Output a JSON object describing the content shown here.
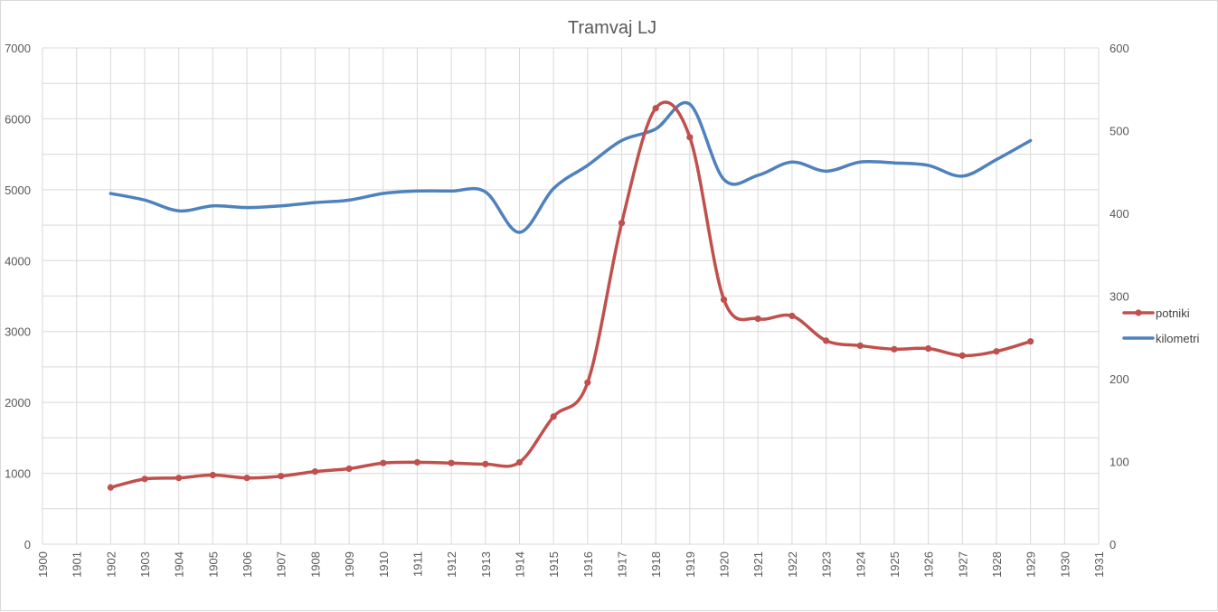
{
  "chart_data": {
    "type": "line",
    "title": "Tramvaj LJ",
    "x_ticks": [
      "1900",
      "1901",
      "1902",
      "1903",
      "1904",
      "1905",
      "1906",
      "1907",
      "1908",
      "1909",
      "1910",
      "1911",
      "1912",
      "1913",
      "1914",
      "1915",
      "1916",
      "1917",
      "1918",
      "1919",
      "1920",
      "1921",
      "1922",
      "1923",
      "1924",
      "1925",
      "1926",
      "1927",
      "1928",
      "1929",
      "1930",
      "1931"
    ],
    "xlim": [
      1900,
      1931
    ],
    "ylim_left": [
      0,
      7000
    ],
    "ylim_right": [
      0,
      600
    ],
    "y_left_ticks": [
      0,
      1000,
      2000,
      3000,
      4000,
      5000,
      6000,
      7000
    ],
    "y_right_ticks": [
      0,
      100,
      200,
      300,
      400,
      500,
      600
    ],
    "grid": true,
    "legend_position": "right",
    "colors": {
      "potniki": "#c0504d",
      "kilometri": "#4f81bd",
      "grid": "#d9d9d9"
    },
    "series": [
      {
        "name": "potniki",
        "axis": "left",
        "markers": true,
        "x": [
          1902,
          1903,
          1904,
          1905,
          1906,
          1907,
          1908,
          1909,
          1910,
          1911,
          1912,
          1913,
          1914,
          1915,
          1916,
          1917,
          1918,
          1919,
          1920,
          1921,
          1922,
          1923,
          1924,
          1925,
          1926,
          1927,
          1928,
          1929
        ],
        "values": [
          800,
          920,
          935,
          975,
          935,
          960,
          1025,
          1065,
          1145,
          1155,
          1145,
          1130,
          1155,
          1800,
          2280,
          4530,
          6150,
          5740,
          3450,
          3180,
          3220,
          2870,
          2800,
          2750,
          2760,
          2660,
          2720,
          2860
        ]
      },
      {
        "name": "kilometri",
        "axis": "right",
        "markers": false,
        "x": [
          1902,
          1903,
          1904,
          1905,
          1906,
          1907,
          1908,
          1909,
          1910,
          1911,
          1912,
          1913,
          1914,
          1915,
          1916,
          1917,
          1918,
          1919,
          1920,
          1921,
          1922,
          1923,
          1924,
          1925,
          1926,
          1927,
          1928,
          1929
        ],
        "values": [
          424,
          416,
          403,
          409,
          407,
          409,
          413,
          416,
          424,
          427,
          427,
          426,
          377,
          430,
          458,
          488,
          502,
          532,
          441,
          446,
          462,
          451,
          462,
          461,
          458,
          445,
          465,
          488
        ]
      }
    ]
  }
}
